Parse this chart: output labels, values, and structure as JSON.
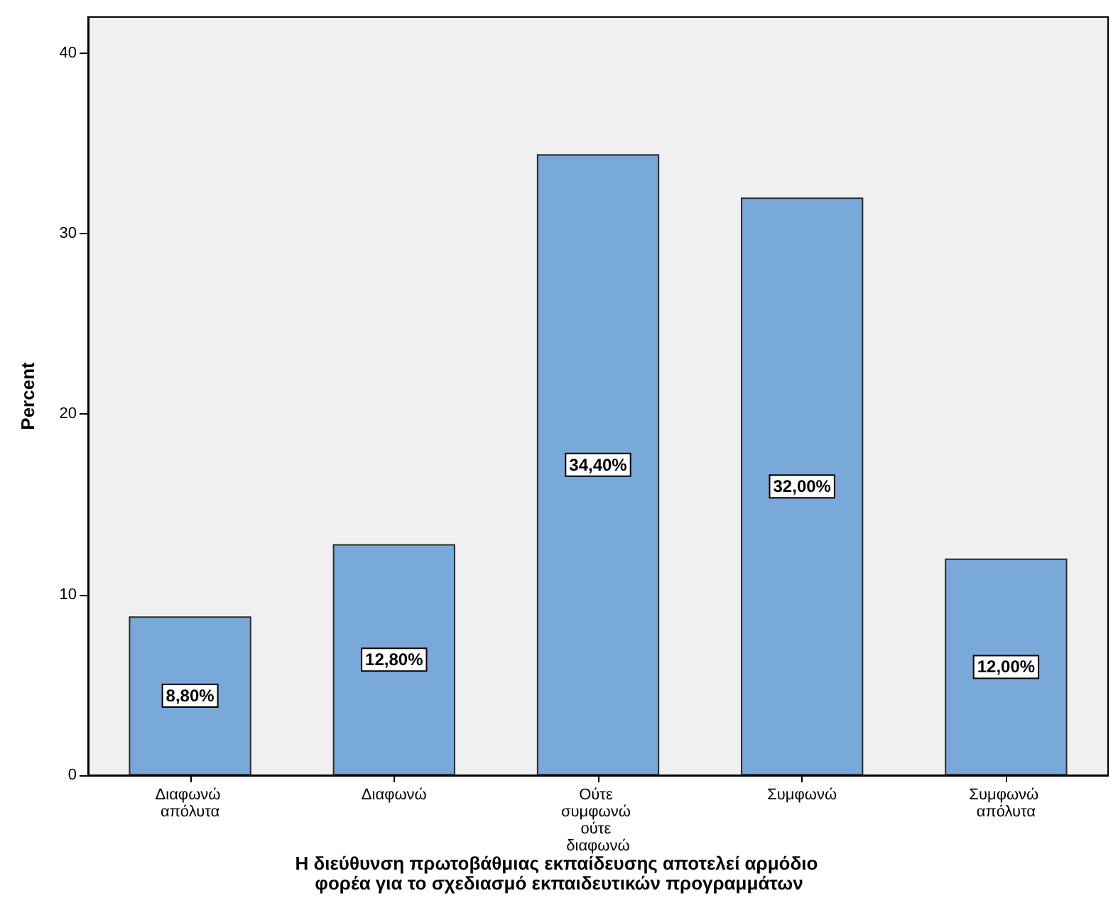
{
  "chart_data": {
    "type": "bar",
    "xlabel": "Η διεύθυνση πρωτοβάθμιας εκπαίδευσης αποτελεί αρμόδιο φορέα για το σχεδιασμό εκπαιδευτικών προγραμμάτων",
    "ylabel": "Percent",
    "categories": [
      "Διαφωνώ απόλυτα",
      "Διαφωνώ",
      "Ούτε συμφωνώ ούτε διαφωνώ",
      "Συμφωνώ",
      "Συμφωνώ απόλυτα"
    ],
    "values": [
      8.8,
      12.8,
      34.4,
      32.0,
      12.0
    ],
    "value_labels": [
      "8,80%",
      "12,80%",
      "34,40%",
      "32,00%",
      "12,00%"
    ],
    "color": "#79a9d9",
    "ylim": [
      0,
      42
    ],
    "yticks": [
      0,
      10,
      20,
      30,
      40
    ],
    "grid": false
  }
}
